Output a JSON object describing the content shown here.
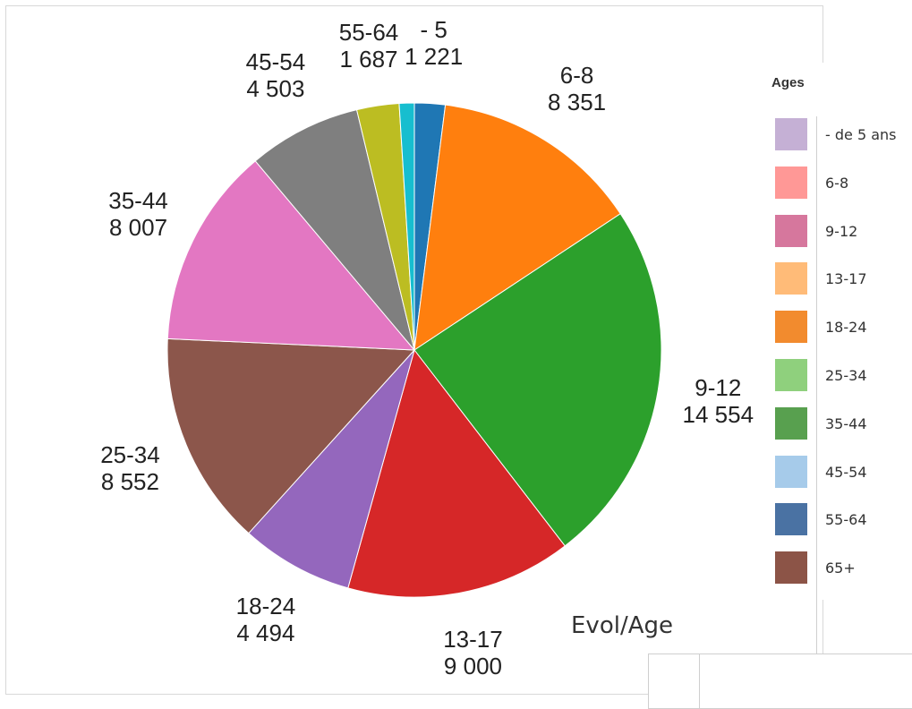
{
  "chart_data": {
    "type": "pie",
    "title": "",
    "slices": [
      {
        "label": "- 5",
        "value_text": "1 221",
        "value": 1221,
        "color": "#1f77b4"
      },
      {
        "label": "6-8",
        "value_text": "8 351",
        "value": 8351,
        "color": "#ff7f0e"
      },
      {
        "label": "9-12",
        "value_text": "14 554",
        "value": 14554,
        "color": "#2ca02c"
      },
      {
        "label": "13-17",
        "value_text": "9 000",
        "value": 9000,
        "color": "#d62728"
      },
      {
        "label": "18-24",
        "value_text": "4 494",
        "value": 4494,
        "color": "#9467bd"
      },
      {
        "label": "25-34",
        "value_text": "8 552",
        "value": 8552,
        "color": "#8c564b"
      },
      {
        "label": "35-44",
        "value_text": "8 007",
        "value": 8007,
        "color": "#e377c2"
      },
      {
        "label": "45-54",
        "value_text": "4 503",
        "value": 4503,
        "color": "#7f7f7f"
      },
      {
        "label": "55-64",
        "value_text": "1 687",
        "value": 1687,
        "color": "#bcbd22"
      },
      {
        "label": "65+",
        "value_text": "",
        "value": 600,
        "color": "#17becf"
      }
    ],
    "start": "top",
    "direction": "clockwise"
  },
  "legend": {
    "title": "Ages",
    "items": [
      {
        "label": "- de 5 ans",
        "color": "#c5b0d5"
      },
      {
        "label": "6-8",
        "color": "#ff9896"
      },
      {
        "label": "9-12",
        "color": "#d6779d"
      },
      {
        "label": "13-17",
        "color": "#ffbb78"
      },
      {
        "label": "18-24",
        "color": "#f28b2e"
      },
      {
        "label": "25-34",
        "color": "#8fd07d"
      },
      {
        "label": "35-44",
        "color": "#58a04f"
      },
      {
        "label": "45-54",
        "color": "#a6cbea"
      },
      {
        "label": "55-64",
        "color": "#4a72a3"
      },
      {
        "label": "65+",
        "color": "#8c5447"
      }
    ]
  },
  "next_panel": {
    "title": "Evol/Age"
  }
}
